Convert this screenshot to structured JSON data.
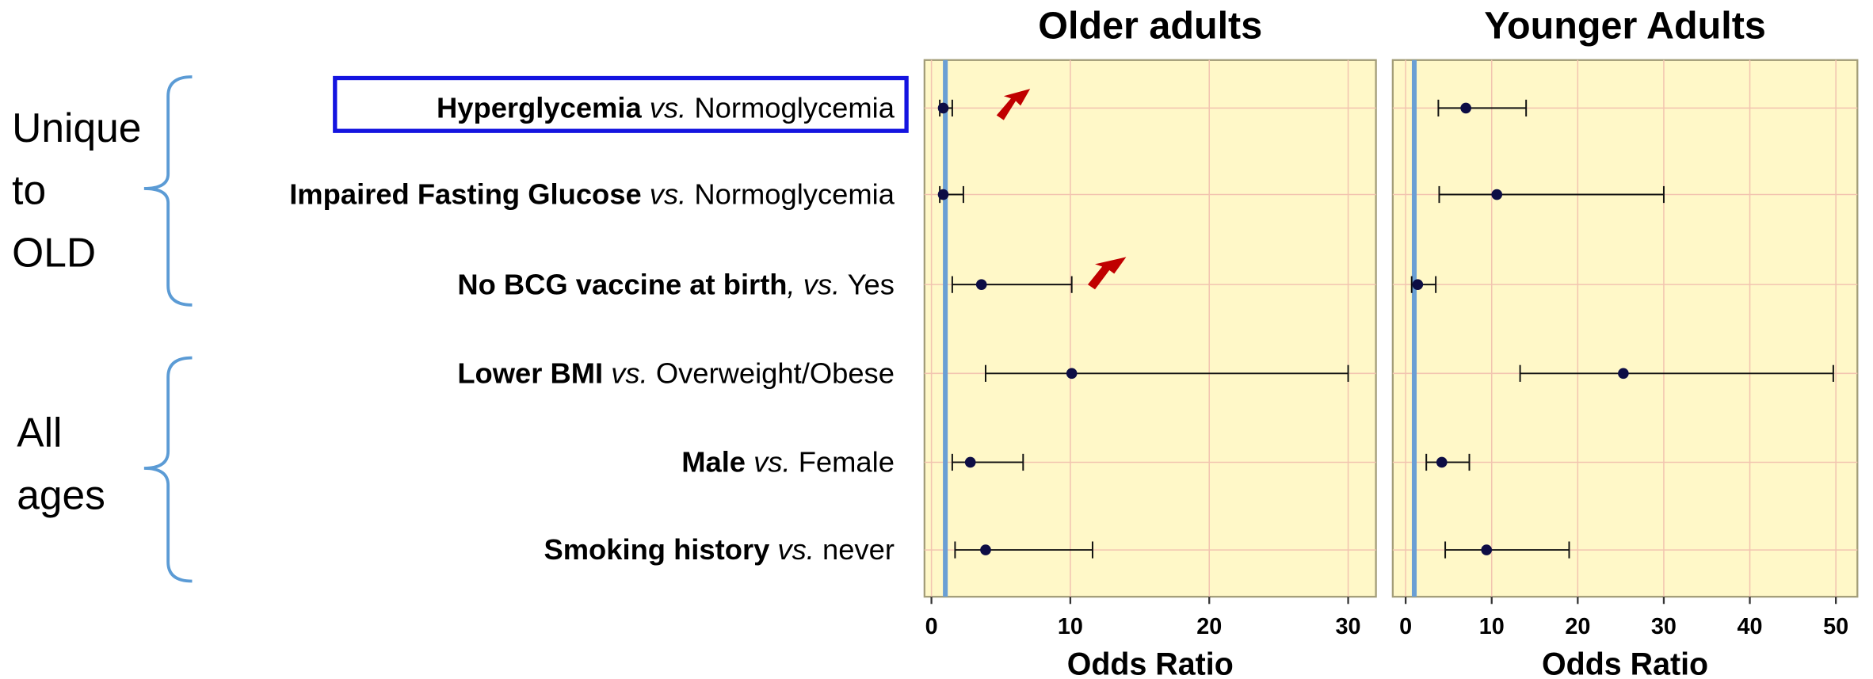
{
  "row_labels": [
    [
      "Hyperglycemia",
      " vs.",
      " Normoglycemia"
    ],
    [
      "Impaired Fasting Glucose",
      " vs.",
      " Normoglycemia"
    ],
    [
      "No BCG vaccine at birth",
      ", vs.",
      " Yes"
    ],
    [
      "Lower BMI",
      " vs.",
      " Overweight/Obese"
    ],
    [
      "Male",
      " vs.",
      " Female"
    ],
    [
      "Smoking history",
      " vs.",
      " never"
    ]
  ],
  "groups": [
    [
      "Unique",
      "to",
      "OLD"
    ],
    [
      "All",
      "ages"
    ]
  ],
  "chart_data": [
    {
      "type": "forest",
      "title": "Older adults",
      "x_label": "Odds Ratio",
      "values": [
        0.85,
        0.85,
        3.6,
        10.1,
        2.8,
        3.9
      ],
      "ci_low": [
        0.6,
        0.6,
        1.5,
        3.9,
        1.5,
        1.7
      ],
      "ci_high": [
        1.5,
        2.3,
        10.1,
        30,
        6.6,
        11.6
      ],
      "xlim": [
        -0.5,
        32
      ],
      "xticks": [
        0,
        10,
        20,
        30
      ],
      "reference": 1,
      "grid": true
    },
    {
      "type": "forest",
      "title": "Younger Adults",
      "x_label": "Odds Ratio",
      "values": [
        7.0,
        10.6,
        1.4,
        25.3,
        4.2,
        9.4
      ],
      "ci_low": [
        3.8,
        3.9,
        0.7,
        13.3,
        2.4,
        4.6
      ],
      "ci_high": [
        14.0,
        30.0,
        3.5,
        49.7,
        7.4,
        19.0
      ],
      "xlim": [
        -1.5,
        52.5
      ],
      "xticks": [
        0,
        10,
        20,
        30,
        40,
        50
      ],
      "reference": 1,
      "grid": true
    }
  ]
}
